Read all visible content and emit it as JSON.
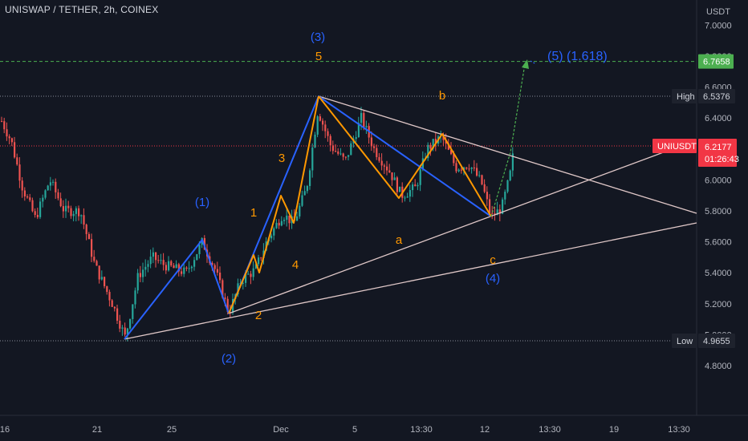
{
  "header": {
    "symbol_title": "UNISWAP / TETHER, 2h, COINEX"
  },
  "colors": {
    "background": "#131722",
    "axis_text": "#b2b5be",
    "up": "#26a69a",
    "down": "#ef5350",
    "wave_blue": "#2962ff",
    "wave_orange": "#ff9800",
    "trendline": "#e0c8c8",
    "green_target": "#4caf50",
    "price_red": "#f23645"
  },
  "chart_data": {
    "type": "candlestick",
    "y_axis": {
      "currency": "USDT",
      "ticks": [
        "4.8000",
        "5.0000",
        "5.2000",
        "5.4000",
        "5.6000",
        "5.8000",
        "6.0000",
        "6.2000",
        "6.4000",
        "6.6000",
        "6.8000",
        "7.0000"
      ],
      "range": [
        4.64,
        7.06
      ]
    },
    "x_axis": {
      "ticks": [
        "16",
        "21",
        "25",
        "Dec",
        "5",
        "13:30",
        "12",
        "13:30",
        "19",
        "13:30"
      ]
    },
    "price_tags": {
      "target": {
        "value": "6.7658"
      },
      "high": {
        "label": "High",
        "value": "6.5376"
      },
      "current": {
        "label": "UNIUSDT",
        "value": "6.2177",
        "countdown": "01:26:43"
      },
      "low": {
        "label": "Low",
        "value": "4.9655"
      }
    },
    "wave_labels": {
      "w1": "(1)",
      "w2": "(2)",
      "w3": "(3)",
      "w4": "(4)",
      "w5": "(5) (1.618)",
      "s1": "1",
      "s2": "2",
      "s3": "3",
      "s4": "4",
      "s5": "5",
      "a": "a",
      "b": "b",
      "c": "c"
    }
  }
}
